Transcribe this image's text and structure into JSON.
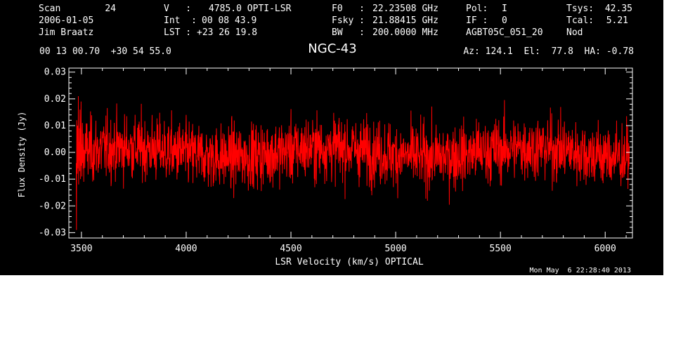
{
  "header": {
    "scan_label": "Scan",
    "scan_number": "24",
    "date": "2006-01-05",
    "observer": "Jim Braatz",
    "velocity_label": "V   :",
    "velocity_value": "4785.0 OPTI-LSR",
    "int_label": "Int  :",
    "int_value": "00 08 43.9",
    "lst_label": "LST : ",
    "lst_value": "+23 26 19.8",
    "f0_label": "F0   :",
    "f0_value": "22.23508 GHz",
    "fsky_label": "Fsky :",
    "fsky_value": "21.88415 GHz",
    "bw_label": "BW   :",
    "bw_value": "200.0000 MHz",
    "pol_label": "Pol:",
    "pol_value": "I",
    "if_label": "IF :",
    "if_value": "0",
    "project": "AGBT05C_051_20",
    "tsys_label": "Tsys:",
    "tsys_value": "42.35",
    "tcal_label": "Tcal:",
    "tcal_value": "5.21",
    "procedure": "Nod",
    "coordinates": "00 13 00.70  +30 54 55.0",
    "az_el_ha": "Az: 124.1  El:  77.8  HA: -0.78",
    "timestamp": "Mon May  6 22:28:40 2013"
  },
  "chart_data": {
    "type": "line",
    "title": "NGC-43",
    "xlabel": "LSR Velocity (km/s) OPTICAL",
    "ylabel": "Flux Density (Jy)",
    "xlim": [
      3440,
      6130
    ],
    "ylim": [
      -0.032,
      0.0315
    ],
    "xticks": [
      3500,
      4000,
      4500,
      5000,
      5500,
      6000
    ],
    "xtick_labels": [
      "3500",
      "4000",
      "4500",
      "5000",
      "5500",
      "6000"
    ],
    "yticks": [
      -0.03,
      -0.02,
      -0.01,
      0.0,
      0.01,
      0.02,
      0.03
    ],
    "ytick_labels": [
      "-0.03",
      "-0.02",
      "-0.01",
      "0.00",
      "0.01",
      "0.02",
      "0.03"
    ],
    "grid": false,
    "series": [
      {
        "color": "#ff0000",
        "x_start": 3475,
        "x_end": 6115,
        "n_points": 2048,
        "mean": 0.0,
        "rms": 0.006,
        "values_sample": [
          -0.004,
          -0.029,
          0.012,
          0.005,
          -0.008,
          0.01,
          0.003,
          -0.006,
          0.021,
          -0.012,
          0.004,
          -0.003,
          0.009,
          -0.007,
          0.016,
          0.002,
          -0.01,
          0.006,
          0.019,
          -0.005,
          0.003,
          -0.009,
          0.008,
          0.011,
          -0.004,
          0.002,
          -0.006,
          0.007,
          -0.011,
          0.001
        ]
      }
    ],
    "axis_color": "#ffffff",
    "background_color": "#000000"
  }
}
